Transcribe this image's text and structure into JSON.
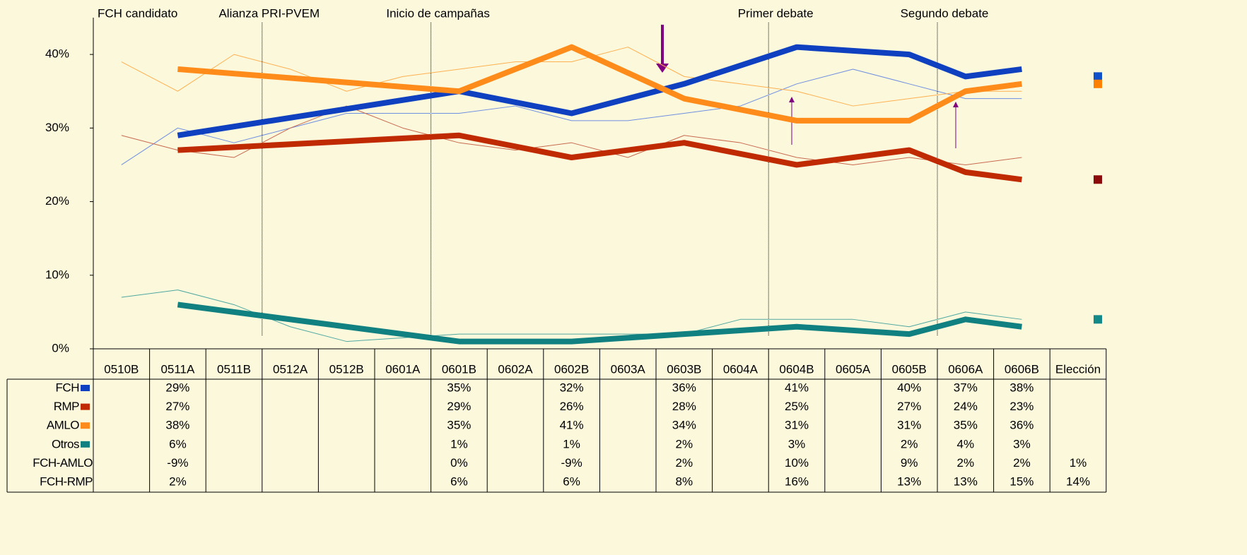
{
  "chart_data": {
    "type": "line",
    "span_gaps": true,
    "categories": [
      "0510B",
      "0511A",
      "0511B",
      "0512A",
      "0512B",
      "0601A",
      "0601B",
      "0602A",
      "0602B",
      "0603A",
      "0603B",
      "0604A",
      "0604B",
      "0605A",
      "0605B",
      "0606A",
      "0606B",
      "Elección"
    ],
    "ylim": [
      0,
      45
    ],
    "yticks": [
      {
        "value": 0,
        "label": "0%"
      },
      {
        "value": 10,
        "label": "10%"
      },
      {
        "value": 20,
        "label": "20%"
      },
      {
        "value": 30,
        "label": "30%"
      },
      {
        "value": 40,
        "label": "40%"
      }
    ],
    "series": [
      {
        "name": "FCH",
        "color": "#0f40c0",
        "election_color": "#1050c8",
        "election": 37,
        "values": [
          null,
          29,
          null,
          null,
          null,
          null,
          35,
          null,
          32,
          null,
          36,
          null,
          41,
          null,
          40,
          37,
          38,
          null
        ],
        "value_labels": [
          null,
          "29%",
          null,
          null,
          null,
          null,
          "35%",
          null,
          "32%",
          null,
          "36%",
          null,
          "41%",
          null,
          "40%",
          "37%",
          "38%",
          null
        ]
      },
      {
        "name": "RMP",
        "color": "#c02a00",
        "election_color": "#8b0a0a",
        "election": 23,
        "values": [
          null,
          27,
          null,
          null,
          null,
          null,
          29,
          null,
          26,
          null,
          28,
          null,
          25,
          null,
          27,
          24,
          23,
          null
        ],
        "value_labels": [
          null,
          "27%",
          null,
          null,
          null,
          null,
          "29%",
          null,
          "26%",
          null,
          "28%",
          null,
          "25%",
          null,
          "27%",
          "24%",
          "23%",
          null
        ]
      },
      {
        "name": "AMLO",
        "color": "#ff8c1a",
        "election_color": "#ff8000",
        "election": 36,
        "values": [
          null,
          38,
          null,
          null,
          null,
          null,
          35,
          null,
          41,
          null,
          34,
          null,
          31,
          null,
          31,
          35,
          36,
          null
        ],
        "value_labels": [
          null,
          "38%",
          null,
          null,
          null,
          null,
          "35%",
          null,
          "41%",
          null,
          "34%",
          null,
          "31%",
          null,
          "31%",
          "35%",
          "36%",
          null
        ]
      },
      {
        "name": "Otros",
        "color": "#118080",
        "election_color": "#138a8a",
        "election": 4,
        "values": [
          null,
          6,
          null,
          null,
          null,
          null,
          1,
          null,
          1,
          null,
          2,
          null,
          3,
          null,
          2,
          4,
          3,
          null
        ],
        "value_labels": [
          null,
          "6%",
          null,
          null,
          null,
          null,
          "1%",
          null,
          "1%",
          null,
          "2%",
          null,
          "3%",
          null,
          "2%",
          "4%",
          "3%",
          null
        ]
      }
    ],
    "thin_series": [
      {
        "color": "#6f8fe0",
        "values": [
          25,
          30,
          28,
          30,
          32,
          32,
          32,
          33,
          31,
          31,
          32,
          33,
          36,
          38,
          36,
          34,
          34,
          null
        ]
      },
      {
        "color": "#c86a50",
        "values": [
          29,
          27,
          26,
          30,
          33,
          30,
          28,
          27,
          28,
          26,
          29,
          28,
          26,
          25,
          26,
          25,
          26,
          null
        ]
      },
      {
        "color": "#ffb050",
        "values": [
          39,
          35,
          40,
          38,
          35,
          37,
          38,
          39,
          39,
          41,
          37,
          36,
          35,
          33,
          34,
          35,
          35,
          null
        ]
      },
      {
        "color": "#50a8a0",
        "values": [
          7,
          8,
          6,
          3,
          1,
          1.5,
          2,
          2,
          2,
          2,
          2,
          4,
          4,
          4,
          3,
          5,
          4,
          null
        ]
      }
    ],
    "table_rows": [
      {
        "name": "FCH-AMLO",
        "values": [
          null,
          -9,
          null,
          null,
          null,
          null,
          0,
          null,
          -9,
          null,
          2,
          null,
          10,
          null,
          9,
          2,
          2,
          1
        ],
        "value_labels": [
          null,
          "-9%",
          null,
          null,
          null,
          null,
          "0%",
          null,
          "-9%",
          null,
          "2%",
          null,
          "10%",
          null,
          "9%",
          "2%",
          "2%",
          "1%"
        ]
      },
      {
        "name": "FCH-RMP",
        "values": [
          null,
          2,
          null,
          null,
          null,
          null,
          6,
          null,
          6,
          null,
          8,
          null,
          16,
          null,
          13,
          13,
          15,
          14
        ],
        "value_labels": [
          null,
          "2%",
          null,
          null,
          null,
          null,
          "6%",
          null,
          "6%",
          null,
          "8%",
          null,
          "16%",
          null,
          "13%",
          "13%",
          "15%",
          "14%"
        ]
      }
    ],
    "events": [
      {
        "label": "FCH candidato",
        "x": 0
      },
      {
        "label": "Alianza PRI-PVEM",
        "x": 3
      },
      {
        "label": "Inicio de campañas",
        "x": 6
      },
      {
        "label": "Primer debate",
        "x": 12
      },
      {
        "label": "Segundo debate",
        "x": 15
      }
    ]
  }
}
